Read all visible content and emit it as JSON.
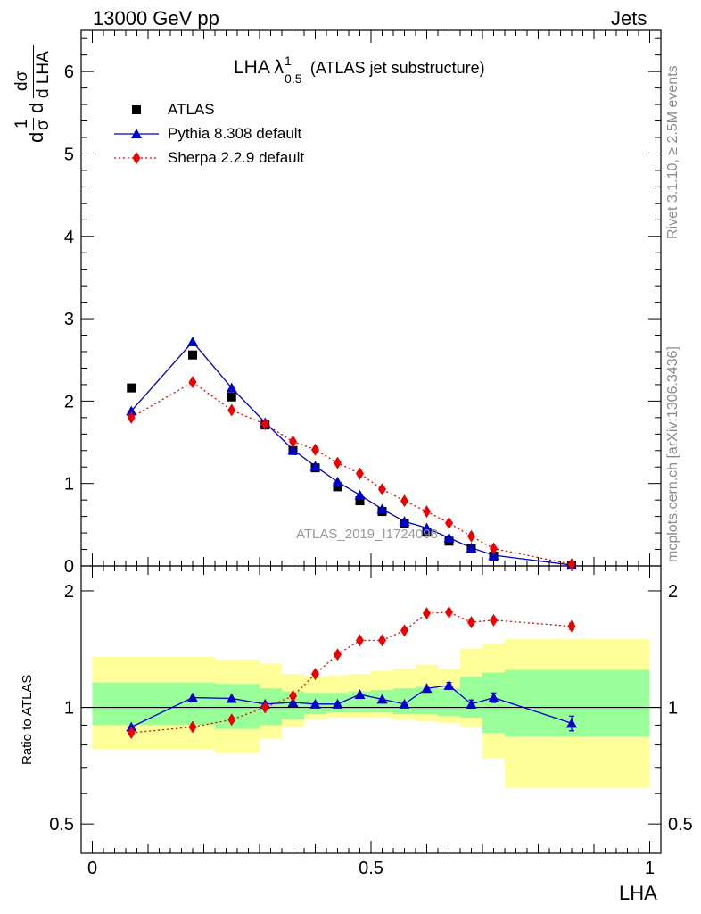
{
  "header": {
    "left": "13000 GeV pp",
    "right": "Jets"
  },
  "side_labels": {
    "rivet": "Rivet 3.1.10, ≥ 2.5M events",
    "mcplots": "mcplots.cern.ch [arXiv:1306.3436]"
  },
  "plot_title": {
    "main": "LHA λ",
    "sup": "1",
    "sub": "0.5",
    "suffix": "(ATLAS jet substructure)"
  },
  "watermark": "ATLAS_2019_I1724098",
  "ylabel_main": {
    "d1": "d",
    "n1": "1",
    "s1": "σ",
    "d2": "d",
    "n2": "dσ",
    "den": "d LHA"
  },
  "ylabel_ratio": "Ratio to ATLAS",
  "xlabel": "LHA",
  "colors": {
    "atlas": "#000000",
    "pythia": "#0000cc",
    "sherpa": "#ee0000",
    "band_outer": "#ffff99",
    "band_inner": "#99ff99"
  },
  "chart_data": [
    {
      "type": "scatter",
      "panel": "main",
      "xlim": [
        -0.02,
        1.02
      ],
      "ylim": [
        0,
        6.5
      ],
      "yticks": [
        "0",
        "1",
        "2",
        "3",
        "4",
        "5",
        "6"
      ],
      "legend_position": "top-left",
      "series": [
        {
          "name": "ATLAS",
          "marker": "square",
          "x": [
            0.07,
            0.18,
            0.25,
            0.31,
            0.36,
            0.4,
            0.44,
            0.48,
            0.52,
            0.56,
            0.6,
            0.64,
            0.68,
            0.72,
            0.86
          ],
          "y": [
            2.16,
            2.56,
            2.05,
            1.71,
            1.4,
            1.19,
            0.96,
            0.79,
            0.66,
            0.52,
            0.41,
            0.3,
            0.21,
            0.12,
            0.01
          ]
        },
        {
          "name": "Pythia 8.308 default",
          "marker": "triangle",
          "x": [
            0.07,
            0.18,
            0.25,
            0.31,
            0.36,
            0.4,
            0.44,
            0.48,
            0.52,
            0.56,
            0.6,
            0.64,
            0.68,
            0.72,
            0.86
          ],
          "y": [
            1.88,
            2.72,
            2.16,
            1.74,
            1.41,
            1.21,
            1.02,
            0.86,
            0.69,
            0.54,
            0.46,
            0.34,
            0.22,
            0.13,
            0.01
          ]
        },
        {
          "name": "Sherpa 2.2.9 default",
          "marker": "diamond",
          "x": [
            0.07,
            0.18,
            0.25,
            0.31,
            0.36,
            0.4,
            0.44,
            0.48,
            0.52,
            0.56,
            0.6,
            0.64,
            0.68,
            0.72,
            0.86
          ],
          "y": [
            1.8,
            2.23,
            1.89,
            1.72,
            1.51,
            1.41,
            1.25,
            1.12,
            0.93,
            0.79,
            0.66,
            0.52,
            0.36,
            0.21,
            0.02
          ]
        }
      ]
    },
    {
      "type": "line",
      "panel": "ratio",
      "xlim": [
        -0.02,
        1.02
      ],
      "ylim": [
        0.42,
        2.32
      ],
      "yticks": [
        "0.5",
        "1",
        "2"
      ],
      "xticks": [
        "0",
        "0.5",
        "1"
      ],
      "xlabel": "LHA",
      "ylabel": "Ratio to ATLAS",
      "bands": {
        "edges": [
          0.0,
          0.22,
          0.3,
          0.34,
          0.38,
          0.42,
          0.46,
          0.5,
          0.54,
          0.58,
          0.62,
          0.66,
          0.7,
          0.74,
          1.0
        ],
        "outer_lo": [
          0.78,
          0.76,
          0.83,
          0.89,
          0.93,
          0.94,
          0.94,
          0.94,
          0.93,
          0.92,
          0.91,
          0.89,
          0.74,
          0.62
        ],
        "outer_hi": [
          1.35,
          1.33,
          1.3,
          1.22,
          1.2,
          1.21,
          1.22,
          1.24,
          1.26,
          1.29,
          1.26,
          1.42,
          1.46,
          1.5
        ],
        "inner_lo": [
          0.9,
          0.88,
          0.9,
          0.93,
          0.96,
          0.97,
          0.97,
          0.97,
          0.96,
          0.96,
          0.95,
          0.94,
          0.86,
          0.84
        ],
        "inner_hi": [
          1.16,
          1.15,
          1.12,
          1.1,
          1.09,
          1.09,
          1.1,
          1.11,
          1.12,
          1.13,
          1.12,
          1.2,
          1.23,
          1.25
        ]
      },
      "series": [
        {
          "name": "Pythia 8.308 default",
          "marker": "triangle",
          "x": [
            0.07,
            0.18,
            0.25,
            0.31,
            0.36,
            0.4,
            0.44,
            0.48,
            0.52,
            0.56,
            0.6,
            0.64,
            0.68,
            0.72,
            0.86
          ],
          "y": [
            0.89,
            1.06,
            1.055,
            1.02,
            1.03,
            1.02,
            1.02,
            1.08,
            1.05,
            1.02,
            1.12,
            1.14,
            1.02,
            1.06,
            0.91
          ],
          "err": [
            0,
            0,
            0,
            0,
            0,
            0,
            0,
            0,
            0,
            0,
            0,
            0.02,
            0.025,
            0.03,
            0.04
          ]
        },
        {
          "name": "Sherpa 2.2.9 default",
          "marker": "diamond",
          "x": [
            0.07,
            0.18,
            0.25,
            0.31,
            0.36,
            0.4,
            0.44,
            0.48,
            0.52,
            0.56,
            0.6,
            0.64,
            0.68,
            0.72,
            0.86
          ],
          "y": [
            0.86,
            0.89,
            0.93,
            1.0,
            1.07,
            1.22,
            1.37,
            1.49,
            1.49,
            1.58,
            1.75,
            1.76,
            1.66,
            1.68,
            1.62
          ],
          "err": [
            0,
            0,
            0,
            0,
            0,
            0,
            0,
            0,
            0,
            0.01,
            0.02,
            0.02,
            0.02,
            0.02,
            0.03
          ]
        }
      ]
    }
  ]
}
